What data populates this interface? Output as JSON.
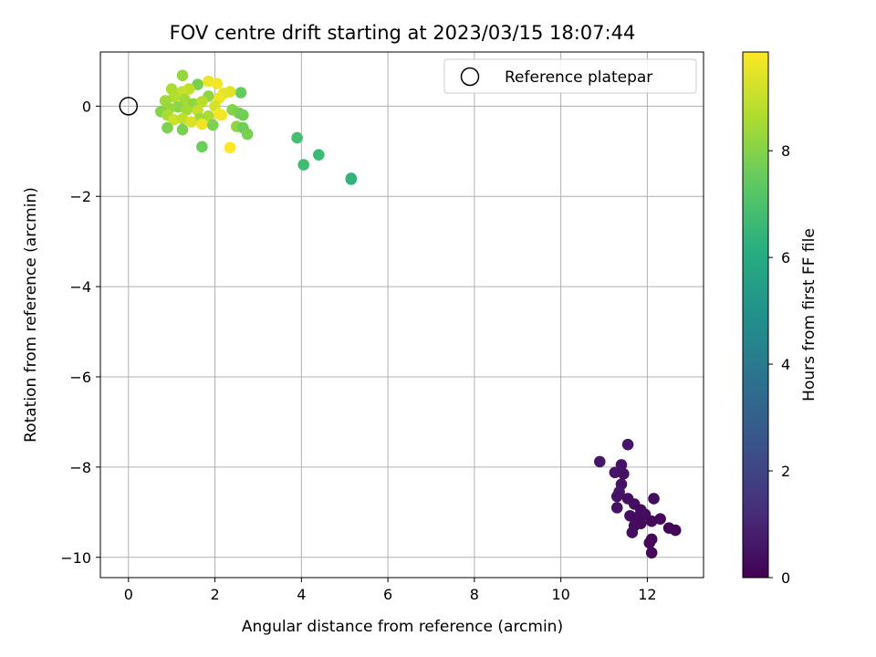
{
  "chart_data": {
    "type": "scatter",
    "title": "FOV centre drift starting at 2023/03/15 18:07:44",
    "xlabel": "Angular distance from reference (arcmin)",
    "ylabel": "Rotation from reference (arcmin)",
    "xlim": [
      -0.65,
      13.3
    ],
    "ylim": [
      -10.45,
      1.2
    ],
    "x_ticks": [
      0,
      2,
      4,
      6,
      8,
      10,
      12
    ],
    "y_ticks": [
      0,
      -2,
      -4,
      -6,
      -8,
      -10
    ],
    "grid": true,
    "legend": {
      "position": "top-right",
      "entries": [
        "Reference platepar"
      ]
    },
    "reference_point": {
      "x": 0,
      "y": 0,
      "label": "Reference platepar",
      "marker": "open-circle"
    },
    "colorbar": {
      "label": "Hours from first FF file",
      "colormap": "viridis",
      "range": [
        0,
        9.85
      ],
      "ticks": [
        0,
        2,
        4,
        6,
        8
      ]
    },
    "points": [
      {
        "x": 11.55,
        "y": -7.5,
        "c": 0.6
      },
      {
        "x": 10.9,
        "y": -7.88,
        "c": 0.6
      },
      {
        "x": 11.4,
        "y": -7.95,
        "c": 0.5
      },
      {
        "x": 11.25,
        "y": -8.12,
        "c": 0.6
      },
      {
        "x": 11.45,
        "y": -8.15,
        "c": 0.5
      },
      {
        "x": 11.4,
        "y": -8.38,
        "c": 0.5
      },
      {
        "x": 11.35,
        "y": -8.55,
        "c": 0.6
      },
      {
        "x": 11.3,
        "y": -8.65,
        "c": 0.5
      },
      {
        "x": 11.55,
        "y": -8.7,
        "c": 0.4
      },
      {
        "x": 12.15,
        "y": -8.7,
        "c": 0.3
      },
      {
        "x": 11.7,
        "y": -8.82,
        "c": 0.4
      },
      {
        "x": 11.3,
        "y": -8.9,
        "c": 0.5
      },
      {
        "x": 11.85,
        "y": -8.95,
        "c": 0.3
      },
      {
        "x": 11.95,
        "y": -9.05,
        "c": 0.3
      },
      {
        "x": 11.6,
        "y": -9.08,
        "c": 0.4
      },
      {
        "x": 11.75,
        "y": -9.12,
        "c": 0.3
      },
      {
        "x": 12.3,
        "y": -9.15,
        "c": 0.2
      },
      {
        "x": 12.1,
        "y": -9.2,
        "c": 0.2
      },
      {
        "x": 11.85,
        "y": -9.25,
        "c": 0.3
      },
      {
        "x": 11.7,
        "y": -9.3,
        "c": 0.3
      },
      {
        "x": 12.5,
        "y": -9.35,
        "c": 0.1
      },
      {
        "x": 12.65,
        "y": -9.4,
        "c": 0.1
      },
      {
        "x": 11.65,
        "y": -9.45,
        "c": 0.4
      },
      {
        "x": 12.1,
        "y": -9.6,
        "c": 0.2
      },
      {
        "x": 12.05,
        "y": -9.68,
        "c": 0.2
      },
      {
        "x": 12.1,
        "y": -9.9,
        "c": 0.2
      },
      {
        "x": 3.9,
        "y": -0.7,
        "c": 6.9
      },
      {
        "x": 4.05,
        "y": -1.3,
        "c": 6.8
      },
      {
        "x": 4.4,
        "y": -1.08,
        "c": 6.7
      },
      {
        "x": 5.15,
        "y": -1.6,
        "c": 6.5
      },
      {
        "x": 5.15,
        "y": -1.62,
        "c": 6.4
      },
      {
        "x": 1.25,
        "y": 0.68,
        "c": 8.3
      },
      {
        "x": 1.85,
        "y": 0.55,
        "c": 9.6
      },
      {
        "x": 1.6,
        "y": 0.48,
        "c": 7.8
      },
      {
        "x": 2.05,
        "y": 0.5,
        "c": 9.7
      },
      {
        "x": 1.0,
        "y": 0.38,
        "c": 8.6
      },
      {
        "x": 1.4,
        "y": 0.38,
        "c": 8.9
      },
      {
        "x": 1.25,
        "y": 0.32,
        "c": 9.0
      },
      {
        "x": 2.6,
        "y": 0.3,
        "c": 7.5
      },
      {
        "x": 2.35,
        "y": 0.32,
        "c": 9.4
      },
      {
        "x": 2.2,
        "y": 0.28,
        "c": 9.5
      },
      {
        "x": 1.05,
        "y": 0.2,
        "c": 8.7
      },
      {
        "x": 1.85,
        "y": 0.22,
        "c": 8.2
      },
      {
        "x": 2.1,
        "y": 0.18,
        "c": 9.6
      },
      {
        "x": 0.85,
        "y": 0.12,
        "c": 8.4
      },
      {
        "x": 1.3,
        "y": 0.15,
        "c": 8.5
      },
      {
        "x": 1.5,
        "y": 0.05,
        "c": 8.2
      },
      {
        "x": 1.7,
        "y": 0.1,
        "c": 8.8
      },
      {
        "x": 2.0,
        "y": 0.0,
        "c": 9.2
      },
      {
        "x": 1.15,
        "y": -0.02,
        "c": 8.1
      },
      {
        "x": 0.95,
        "y": -0.05,
        "c": 8.3
      },
      {
        "x": 0.75,
        "y": -0.12,
        "c": 8.0
      },
      {
        "x": 1.35,
        "y": -0.08,
        "c": 8.5
      },
      {
        "x": 1.6,
        "y": -0.1,
        "c": 9.0
      },
      {
        "x": 2.4,
        "y": -0.08,
        "c": 8.0
      },
      {
        "x": 2.55,
        "y": -0.15,
        "c": 7.8
      },
      {
        "x": 2.65,
        "y": -0.2,
        "c": 7.7
      },
      {
        "x": 2.1,
        "y": -0.18,
        "c": 9.8
      },
      {
        "x": 2.15,
        "y": -0.2,
        "c": 9.7
      },
      {
        "x": 1.85,
        "y": -0.22,
        "c": 8.6
      },
      {
        "x": 0.9,
        "y": -0.2,
        "c": 8.6
      },
      {
        "x": 1.05,
        "y": -0.3,
        "c": 9.1
      },
      {
        "x": 1.25,
        "y": -0.28,
        "c": 8.9
      },
      {
        "x": 1.65,
        "y": -0.28,
        "c": 8.4
      },
      {
        "x": 1.45,
        "y": -0.35,
        "c": 9.3
      },
      {
        "x": 1.7,
        "y": -0.4,
        "c": 9.6
      },
      {
        "x": 1.95,
        "y": -0.42,
        "c": 7.9
      },
      {
        "x": 2.5,
        "y": -0.45,
        "c": 8.2
      },
      {
        "x": 2.65,
        "y": -0.48,
        "c": 7.6
      },
      {
        "x": 0.9,
        "y": -0.48,
        "c": 7.9
      },
      {
        "x": 1.25,
        "y": -0.52,
        "c": 7.8
      },
      {
        "x": 2.75,
        "y": -0.62,
        "c": 7.8
      },
      {
        "x": 1.7,
        "y": -0.9,
        "c": 7.6
      },
      {
        "x": 2.35,
        "y": -0.92,
        "c": 9.9
      }
    ]
  }
}
